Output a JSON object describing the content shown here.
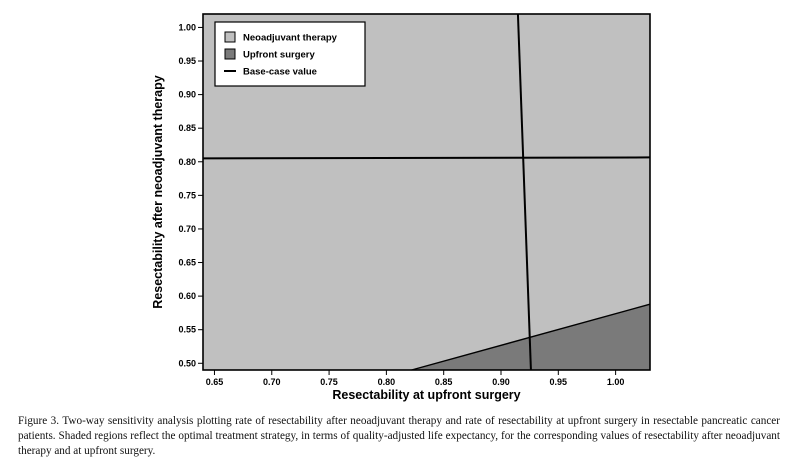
{
  "chart_data": {
    "type": "area",
    "xlabel": "Resectability at upfront surgery",
    "ylabel": "Resectability after neoadjuvant therapy",
    "xlim": [
      0.64,
      1.03
    ],
    "ylim": [
      0.49,
      1.02
    ],
    "x_ticks": [
      "0.65",
      "0.70",
      "0.75",
      "0.80",
      "0.85",
      "0.90",
      "0.95",
      "1.00"
    ],
    "y_ticks": [
      "0.50",
      "0.55",
      "0.60",
      "0.65",
      "0.70",
      "0.75",
      "0.80",
      "0.85",
      "0.90",
      "0.95",
      "1.00"
    ],
    "regions": [
      {
        "name": "Neoadjuvant therapy",
        "color": "#c0c0c0"
      },
      {
        "name": "Upfront surgery",
        "color": "#7a7a7a",
        "boundary": [
          [
            0.822,
            0.49
          ],
          [
            1.03,
            0.588
          ]
        ]
      }
    ],
    "base_case": {
      "x": 0.92,
      "y": 0.805,
      "label": "Base-case value"
    },
    "legend": {
      "position": "top-left",
      "entries": [
        {
          "label": "Neoadjuvant therapy",
          "type": "fill",
          "color": "#c0c0c0"
        },
        {
          "label": "Upfront surgery",
          "type": "fill",
          "color": "#7a7a7a"
        },
        {
          "label": "Base-case value",
          "type": "line",
          "color": "#000000"
        }
      ]
    },
    "grid": false
  },
  "caption": "Figure 3. Two-way sensitivity analysis plotting rate of resectability after neoadjuvant therapy and rate of resectability at upfront surgery in resectable pancreatic cancer patients. Shaded regions reflect the optimal treatment strategy, in terms of quality-adjusted life expectancy, for the corresponding values of resectability after neoadjuvant therapy and at upfront surgery."
}
